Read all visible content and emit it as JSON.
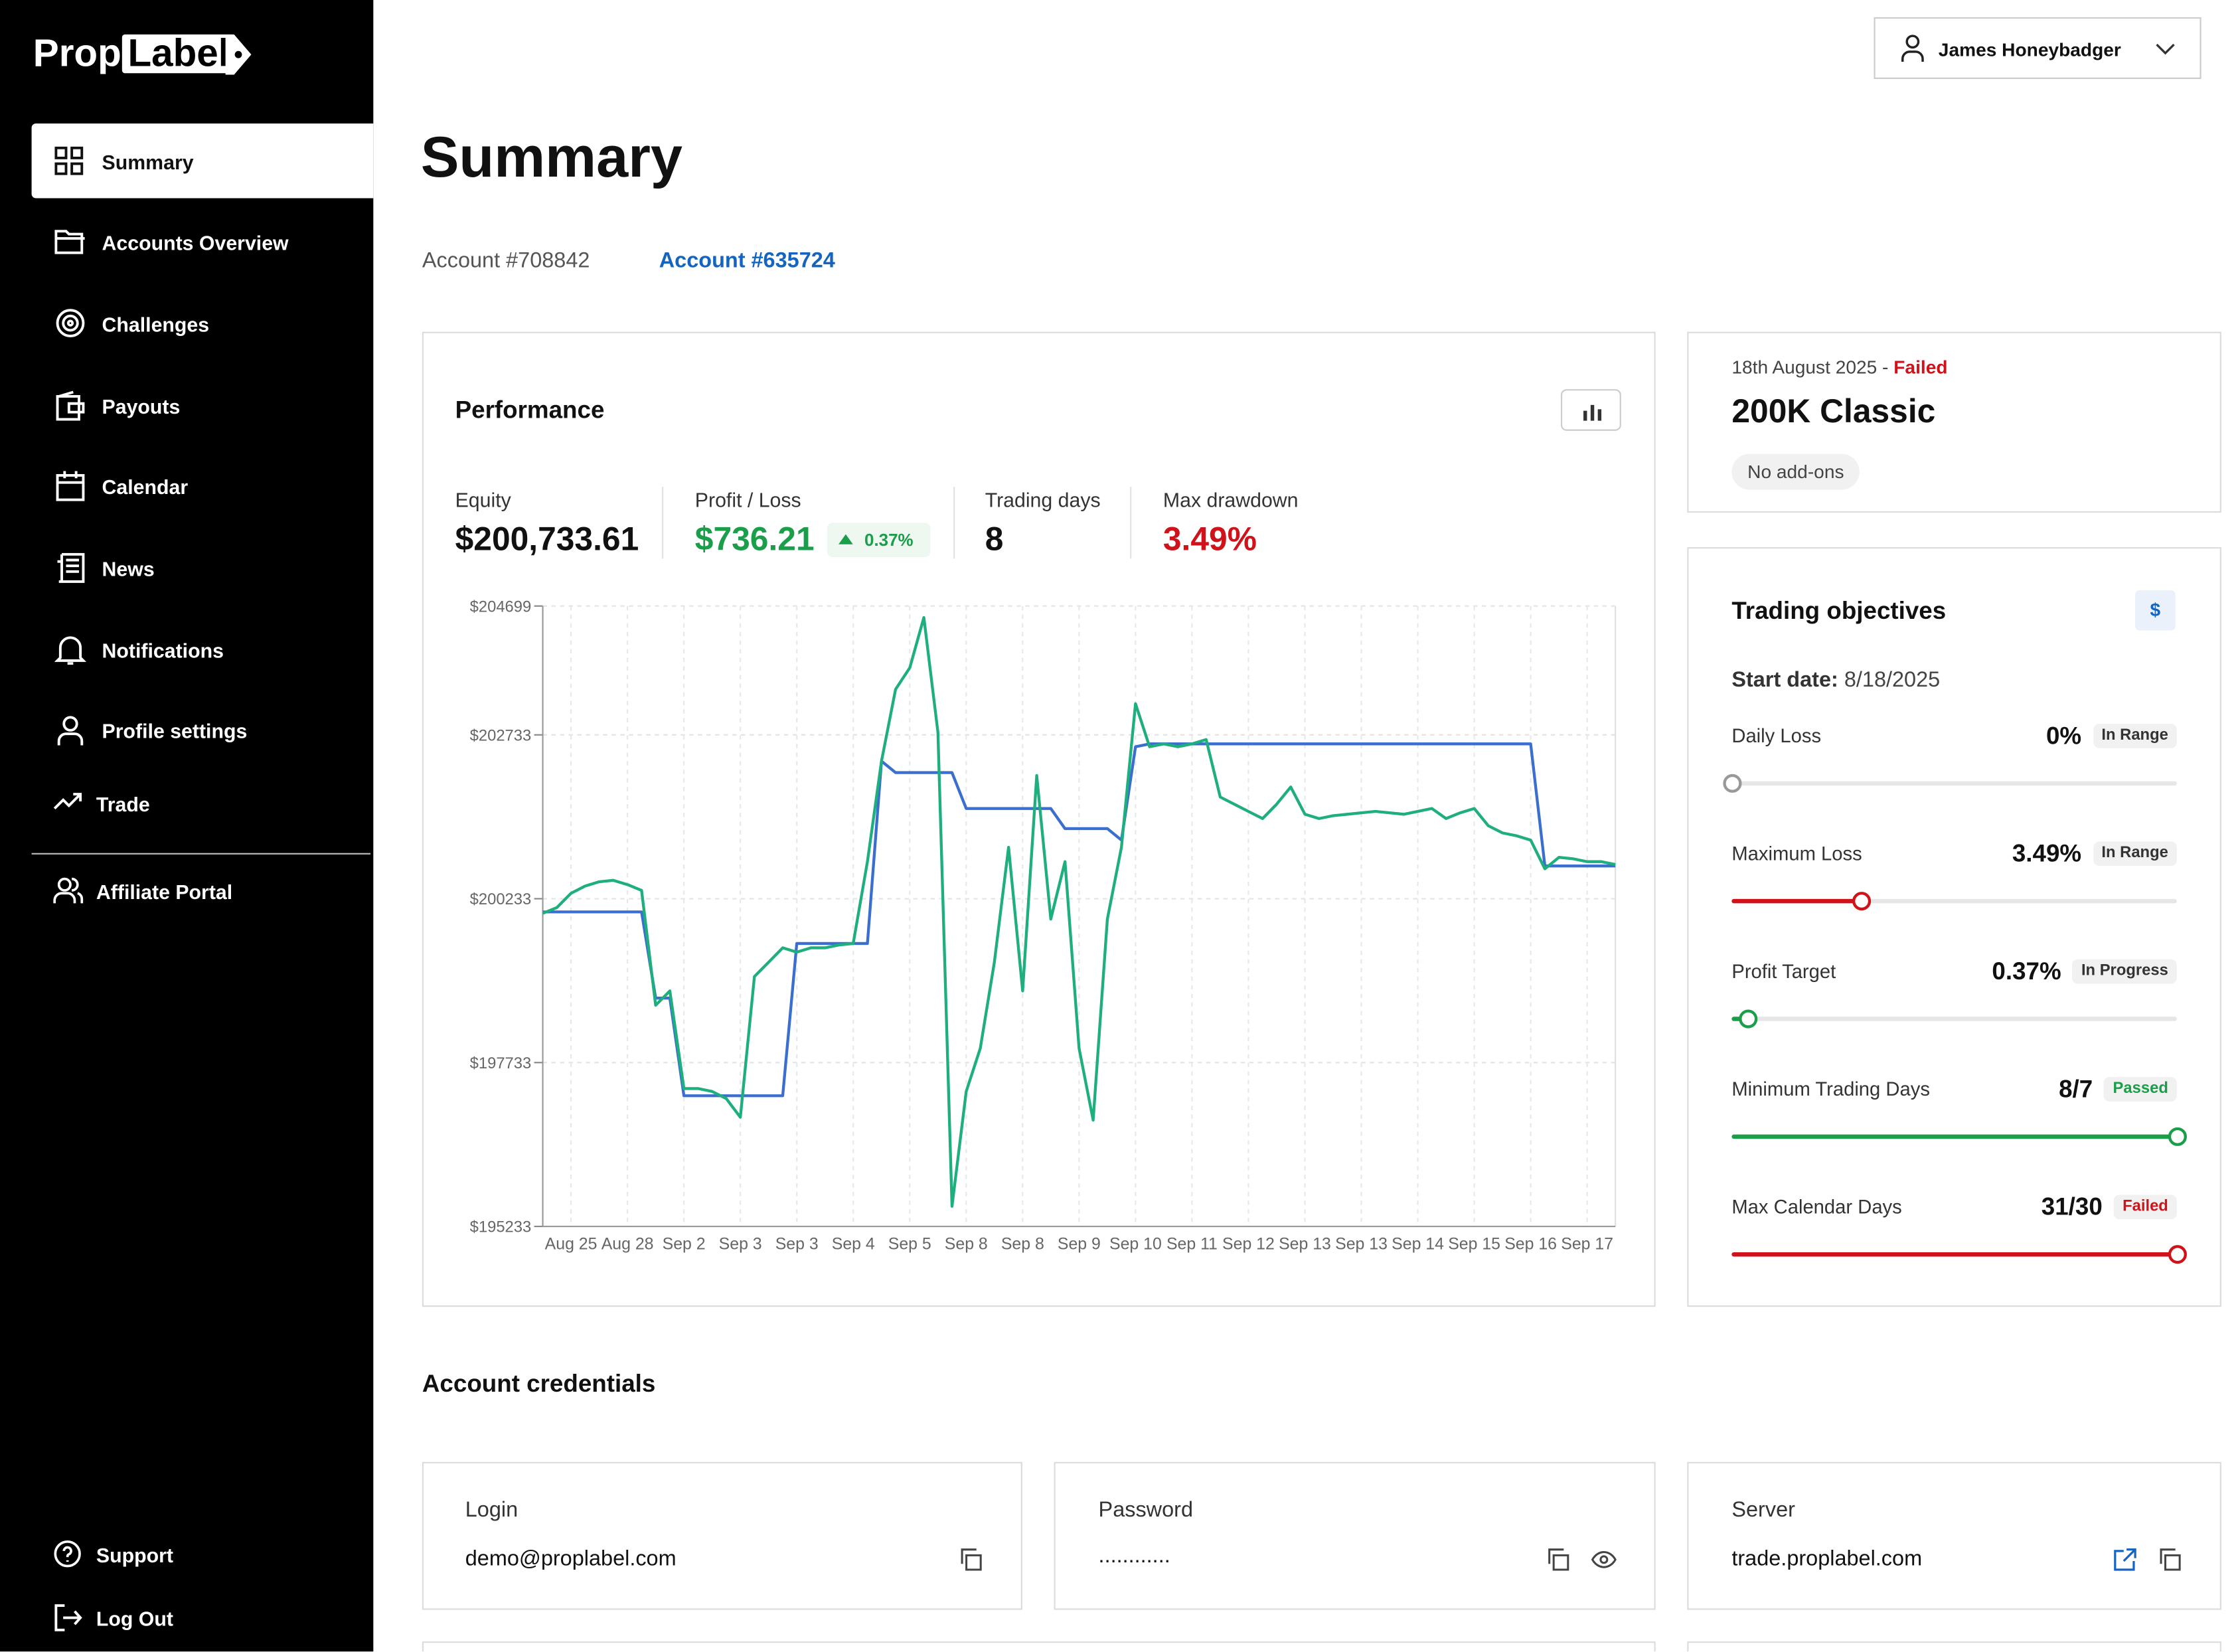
{
  "logo": {
    "part1": "Prop",
    "part2": "Label"
  },
  "nav": [
    "Summary",
    "Accounts Overview",
    "Challenges",
    "Payouts",
    "Calendar",
    "News",
    "Notifications",
    "Profile settings",
    "Trade",
    "Affiliate Portal"
  ],
  "nav_bottom": [
    "Support",
    "Log Out"
  ],
  "user": "James Honeybadger",
  "page_title": "Summary",
  "tabs": [
    "Account #708842",
    "Account #635724"
  ],
  "performance": {
    "title": "Performance",
    "stats": [
      {
        "label": "Equity",
        "value": "$200,733.61"
      },
      {
        "label": "Profit / Loss",
        "value": "$736.21",
        "badge": "0.37%"
      },
      {
        "label": "Trading days",
        "value": "8"
      },
      {
        "label": "Max drawdown",
        "value": "3.49%"
      }
    ]
  },
  "chart_data": {
    "type": "line",
    "categories": [
      null,
      null,
      "Aug 25",
      null,
      null,
      null,
      "Aug 28",
      null,
      null,
      null,
      "Sep 2",
      null,
      null,
      null,
      "Sep 3",
      null,
      null,
      null,
      "Sep 3",
      null,
      null,
      null,
      "Sep 4",
      null,
      null,
      null,
      "Sep 5",
      null,
      null,
      null,
      "Sep 8",
      null,
      null,
      null,
      "Sep 8",
      null,
      null,
      null,
      "Sep 9",
      null,
      null,
      null,
      "Sep 10",
      null,
      null,
      null,
      "Sep 11",
      null,
      null,
      null,
      "Sep 12",
      null,
      null,
      null,
      "Sep 13",
      null,
      null,
      null,
      "Sep 13",
      null,
      null,
      null,
      "Sep 14",
      null,
      null,
      null,
      "Sep 15",
      null,
      null,
      null,
      "Sep 16",
      null,
      null,
      null,
      "Sep 17",
      null,
      null
    ],
    "series": [
      {
        "color": "#3a6fcf",
        "values": [
          200032,
          200032,
          200032,
          200032,
          200032,
          200032,
          200032,
          200032,
          198717,
          198717,
          197227,
          197227,
          197227,
          197227,
          197227,
          197227,
          197227,
          197227,
          199550,
          199550,
          199550,
          199550,
          199550,
          199550,
          202333,
          202157,
          202157,
          202157,
          202157,
          202157,
          201609,
          201609,
          201609,
          201609,
          201609,
          201609,
          201609,
          201303,
          201303,
          201303,
          201303,
          201127,
          202552,
          202595,
          202595,
          202595,
          202595,
          202595,
          202595,
          202595,
          202595,
          202595,
          202595,
          202595,
          202595,
          202595,
          202595,
          202595,
          202595,
          202595,
          202595,
          202595,
          202595,
          202595,
          202595,
          202595,
          202595,
          202595,
          202595,
          202595,
          202595,
          200733,
          200733,
          200733,
          200733,
          200733,
          200733
        ]
      },
      {
        "color": "#1fae7e",
        "values": [
          200010,
          200097,
          200317,
          200426,
          200492,
          200514,
          200448,
          200360,
          198607,
          198827,
          197337,
          197337,
          197293,
          197183,
          196898,
          199046,
          199265,
          199484,
          199418,
          199484,
          199484,
          199528,
          199550,
          200799,
          202333,
          203428,
          203757,
          204524,
          202771,
          195540,
          197293,
          197950,
          199265,
          201018,
          198827,
          202113,
          199922,
          200799,
          197950,
          196855,
          199922,
          201018,
          203209,
          202552,
          202595,
          202552,
          202595,
          202661,
          201785,
          201675,
          201566,
          201456,
          201675,
          201938,
          201522,
          201456,
          201500,
          201522,
          201544,
          201566,
          201544,
          201522,
          201566,
          201609,
          201456,
          201544,
          201609,
          201346,
          201237,
          201193,
          201127,
          200689,
          200864,
          200842,
          200799,
          200799,
          200755
        ]
      }
    ],
    "ylim": [
      195233,
      204699
    ],
    "yticks": [
      {
        "value": 195233,
        "label": "$195233"
      },
      {
        "value": 197733,
        "label": "$197733"
      },
      {
        "value": 200233,
        "label": "$200233"
      },
      {
        "value": 202733,
        "label": "$202733"
      },
      {
        "value": 204699,
        "label": "$204699"
      }
    ],
    "grid": true
  },
  "plan": {
    "date": "18th August 2025 - ",
    "status": "Failed",
    "name": "200K Classic",
    "addons": "No add-ons"
  },
  "objectives": {
    "title": "Trading objectives",
    "currency": "$",
    "start_label": "Start date:",
    "start_date": "8/18/2025",
    "rows": [
      {
        "label": "Daily Loss",
        "value": "0%",
        "status": "In Range"
      },
      {
        "label": "Maximum Loss",
        "value": "3.49%",
        "status": "In Range"
      },
      {
        "label": "Profit Target",
        "value": "0.37%",
        "status": "In Progress"
      },
      {
        "label": "Minimum Trading Days",
        "value": "8/7",
        "status": "Passed"
      },
      {
        "label": "Max Calendar Days",
        "value": "31/30",
        "status": "Failed"
      }
    ]
  },
  "credentials": {
    "title": "Account credentials",
    "items": [
      {
        "label": "Login",
        "value": "demo@proplabel.com"
      },
      {
        "label": "Password",
        "value": "............"
      },
      {
        "label": "Server",
        "value": "trade.proplabel.com"
      }
    ]
  }
}
